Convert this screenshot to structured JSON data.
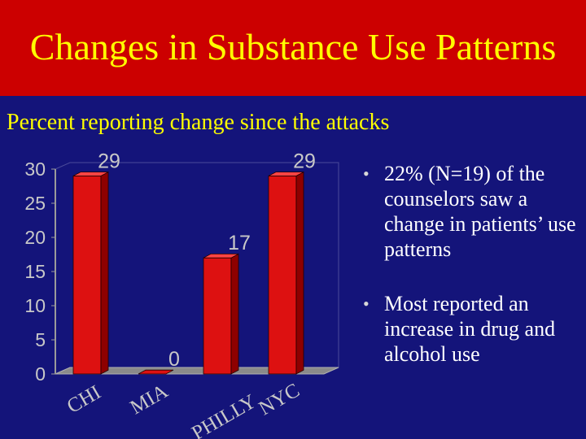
{
  "header": {
    "title": "Changes in Substance Use Patterns"
  },
  "subtitle": "Percent reporting change since the attacks",
  "bullets": [
    {
      "icon": "bullet-dot-icon",
      "text": "22% (N=19) of the counselors saw a change in patients’ use patterns"
    },
    {
      "icon": "bullet-dot-icon",
      "text": "Most reported an increase in drug and alcohol use"
    }
  ],
  "colors": {
    "title_band": "#cc0000",
    "background": "#14147a",
    "title_text": "#ffff00",
    "bar": "#dd1111",
    "axis_text": "#c8c8c8"
  },
  "chart_data": {
    "type": "bar",
    "style": "3d",
    "categories": [
      "CHI",
      "MIA",
      "PHILLY",
      "NYC"
    ],
    "values": [
      29,
      0,
      17,
      29
    ],
    "ylim": [
      0,
      30
    ],
    "yticks": [
      0,
      5,
      10,
      15,
      20,
      25,
      30
    ],
    "data_labels": [
      "29",
      "0",
      "17",
      "29"
    ],
    "grid": false,
    "legend": "none",
    "xlabel": "",
    "ylabel": ""
  }
}
